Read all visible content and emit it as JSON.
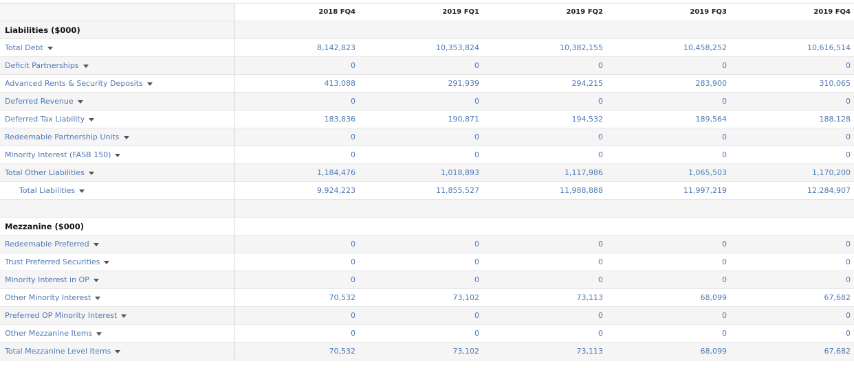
{
  "columns": [
    "2018 FQ4",
    "2019 FQ1",
    "2019 FQ2",
    "2019 FQ3",
    "2019 FQ4"
  ],
  "sections": {
    "liabilities": {
      "title": "Liabilities ($000)",
      "rows": [
        {
          "label": "Total Debt",
          "values": [
            "8,142,823",
            "10,353,824",
            "10,382,155",
            "10,458,252",
            "10,616,514"
          ]
        },
        {
          "label": "Deficit Partnerships",
          "values": [
            "0",
            "0",
            "0",
            "0",
            "0"
          ]
        },
        {
          "label": "Advanced Rents & Security Deposits",
          "values": [
            "413,088",
            "291,939",
            "294,215",
            "283,900",
            "310,065"
          ]
        },
        {
          "label": "Deferred Revenue",
          "values": [
            "0",
            "0",
            "0",
            "0",
            "0"
          ]
        },
        {
          "label": "Deferred Tax Liability",
          "values": [
            "183,836",
            "190,871",
            "194,532",
            "189,564",
            "188,128"
          ]
        },
        {
          "label": "Redeemable Partnership Units",
          "values": [
            "0",
            "0",
            "0",
            "0",
            "0"
          ]
        },
        {
          "label": "Minority Interest (FASB 150)",
          "values": [
            "0",
            "0",
            "0",
            "0",
            "0"
          ]
        },
        {
          "label": "Total Other Liabilities",
          "values": [
            "1,184,476",
            "1,018,893",
            "1,117,986",
            "1,065,503",
            "1,170,200"
          ]
        },
        {
          "label": "Total Liabilities",
          "values": [
            "9,924,223",
            "11,855,527",
            "11,988,888",
            "11,997,219",
            "12,284,907"
          ]
        }
      ]
    },
    "mezzanine": {
      "title": "Mezzanine ($000)",
      "rows": [
        {
          "label": "Redeemable Preferred",
          "values": [
            "0",
            "0",
            "0",
            "0",
            "0"
          ]
        },
        {
          "label": "Trust Preferred Securities",
          "values": [
            "0",
            "0",
            "0",
            "0",
            "0"
          ]
        },
        {
          "label": "Minority Interest in OP",
          "values": [
            "0",
            "0",
            "0",
            "0",
            "0"
          ]
        },
        {
          "label": "Other Minority Interest",
          "values": [
            "70,532",
            "73,102",
            "73,113",
            "68,099",
            "67,682"
          ]
        },
        {
          "label": "Preferred OP Minority Interest",
          "values": [
            "0",
            "0",
            "0",
            "0",
            "0"
          ]
        },
        {
          "label": "Other Mezzanine Items",
          "values": [
            "0",
            "0",
            "0",
            "0",
            "0"
          ]
        },
        {
          "label": "Total Mezzanine Level Items",
          "values": [
            "70,532",
            "73,102",
            "73,113",
            "68,099",
            "67,682"
          ]
        }
      ]
    }
  }
}
